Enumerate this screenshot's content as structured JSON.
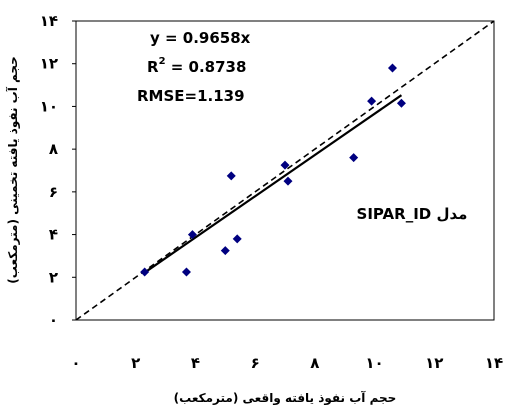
{
  "chart_data": {
    "type": "scatter",
    "xlabel": "حجم آب نفوذ یافته واقعی (مترمکعب)",
    "ylabel": "حجم آب نفوذ یافته تخمینی (مترمکعب)",
    "xlim": [
      0,
      14
    ],
    "ylim": [
      0,
      14
    ],
    "x_ticks": [
      0,
      2,
      4,
      6,
      8,
      10,
      12,
      14
    ],
    "y_ticks": [
      0,
      2,
      4,
      6,
      8,
      10,
      12,
      14
    ],
    "x_tick_labels": [
      "۰",
      "۲",
      "۴",
      "۶",
      "۸",
      "۱۰",
      "۱۲",
      "۱۴"
    ],
    "y_tick_labels": [
      "۰",
      "۲",
      "۴",
      "۶",
      "۸",
      "۱۰",
      "۱۲",
      "۱۴"
    ],
    "grid": false,
    "points": [
      {
        "x": 2.3,
        "y": 2.25
      },
      {
        "x": 3.7,
        "y": 2.25
      },
      {
        "x": 3.9,
        "y": 4.0
      },
      {
        "x": 5.0,
        "y": 3.25
      },
      {
        "x": 5.2,
        "y": 6.75
      },
      {
        "x": 5.4,
        "y": 3.8
      },
      {
        "x": 7.0,
        "y": 7.25
      },
      {
        "x": 7.1,
        "y": 6.5
      },
      {
        "x": 9.3,
        "y": 7.6
      },
      {
        "x": 9.9,
        "y": 10.25
      },
      {
        "x": 10.6,
        "y": 11.8
      },
      {
        "x": 10.9,
        "y": 10.15
      }
    ],
    "fit_line": {
      "slope": 0.9658,
      "intercept": 0,
      "x_range": [
        2.3,
        10.9
      ]
    },
    "reference_line": {
      "slope": 1,
      "intercept": 0,
      "x_range": [
        0,
        14
      ]
    },
    "annotations": {
      "equation": "y = 0.9658x",
      "r2_prefix": "R",
      "r2_sup": "2",
      "r2_value": " = 0.8738",
      "rmse": "RMSE=1.139"
    },
    "model_label": "مدل SIPAR_ID",
    "colors": {
      "points": "#000080",
      "fit_line": "#000000",
      "reference_line": "#000000"
    }
  }
}
